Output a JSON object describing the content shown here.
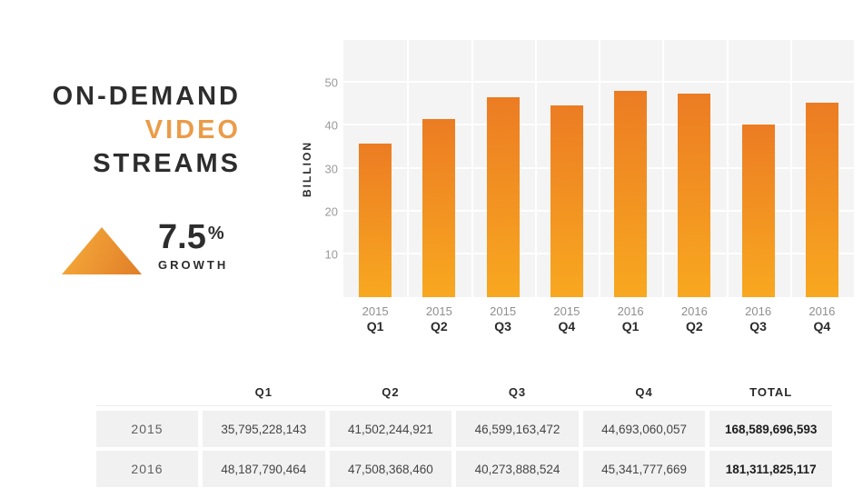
{
  "title": {
    "line1": "ON-DEMAND",
    "line2": "VIDEO",
    "line3": "STREAMS"
  },
  "growth": {
    "value": "7.5",
    "percent_sign": "%",
    "label": "GROWTH"
  },
  "chart_data": {
    "type": "bar",
    "ylabel": "BILLION",
    "ylim": [
      0,
      60
    ],
    "yticks": [
      10,
      20,
      30,
      40,
      50
    ],
    "grid": true,
    "plot_bg": "#f4f4f4",
    "gridline_color": "#ffffff",
    "bar_gradient_top": "#ec7c23",
    "bar_gradient_bottom": "#f8a820",
    "categories": [
      {
        "year": "2015",
        "quarter": "Q1"
      },
      {
        "year": "2015",
        "quarter": "Q2"
      },
      {
        "year": "2015",
        "quarter": "Q3"
      },
      {
        "year": "2015",
        "quarter": "Q4"
      },
      {
        "year": "2016",
        "quarter": "Q1"
      },
      {
        "year": "2016",
        "quarter": "Q2"
      },
      {
        "year": "2016",
        "quarter": "Q3"
      },
      {
        "year": "2016",
        "quarter": "Q4"
      }
    ],
    "values_billions": [
      35.795228143,
      41.502244921,
      46.599163472,
      44.693060057,
      48.187790464,
      47.50836846,
      40.273888524,
      45.341777669
    ]
  },
  "table": {
    "headers": [
      "Q1",
      "Q2",
      "Q3",
      "Q4",
      "TOTAL"
    ],
    "rows": [
      {
        "label": "2015",
        "values": [
          "35,795,228,143",
          "41,502,244,921",
          "46,599,163,472",
          "44,693,060,057"
        ],
        "total": "168,589,696,593"
      },
      {
        "label": "2016",
        "values": [
          "48,187,790,464",
          "47,508,368,460",
          "40,273,888,524",
          "45,341,777,669"
        ],
        "total": "181,311,825,117"
      }
    ]
  },
  "colors": {
    "text_dark": "#2d2d2d",
    "accent_orange": "#eb9b48",
    "triangle_gradient_light": "#f8ae3c",
    "triangle_gradient_dark": "#e07d28",
    "tick_gray": "#9a9a9a",
    "cell_bg": "#f1f1f1"
  }
}
